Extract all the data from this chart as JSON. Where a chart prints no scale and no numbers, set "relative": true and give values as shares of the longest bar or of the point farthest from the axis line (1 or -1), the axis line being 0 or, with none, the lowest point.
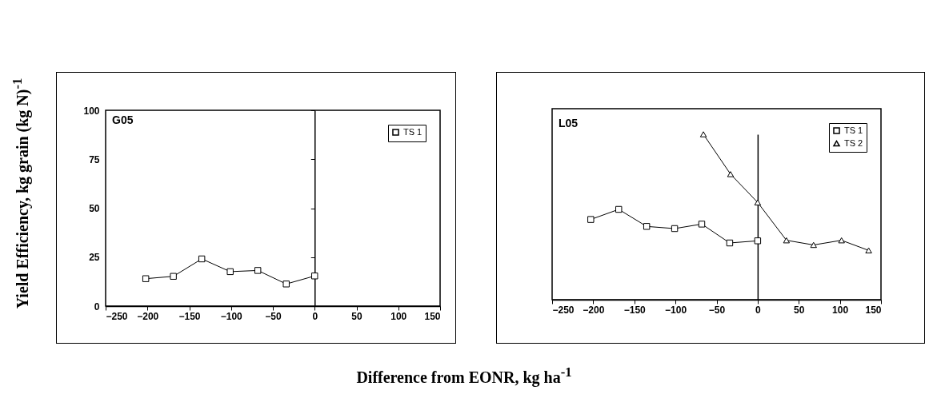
{
  "chart_data": [
    {
      "type": "line",
      "title": "G05",
      "xlabel": "Difference from EONR, kg ha$^{-1}$",
      "ylabel": "Yield Efficiency, kg grain (kg N)$^{-1}$",
      "xlim": [
        -250,
        150
      ],
      "xticks": [
        -250,
        -200,
        -150,
        -100,
        -50,
        0,
        50,
        100,
        150
      ],
      "ylim": [
        0,
        100
      ],
      "yticks": [
        0,
        25,
        50,
        75,
        100
      ],
      "legend": "top right",
      "series": [
        {
          "name": "TS 1",
          "color": "#000000",
          "marker": "square",
          "x": [
            -202,
            -169,
            -135,
            -101,
            -68,
            -34,
            0
          ],
          "values": [
            14.0,
            15.2,
            24.1,
            17.6,
            18.2,
            11.3,
            15.4
          ]
        }
      ]
    },
    {
      "type": "line",
      "title": "L05",
      "relative": true,
      "xlim": [
        -250,
        150
      ],
      "xticks": [
        -250,
        -200,
        -150,
        -100,
        -50,
        0,
        50,
        100,
        150
      ],
      "legend": "top right",
      "series": [
        {
          "name": "TS 1",
          "color": "#000000",
          "marker": "square",
          "x": [
            -203,
            -169,
            -135,
            -101,
            -68,
            -34,
            0
          ],
          "values": [
            0.485,
            0.546,
            0.443,
            0.43,
            0.457,
            0.343,
            0.356
          ]
        },
        {
          "name": "TS 2",
          "color": "#000000",
          "marker": "triangle",
          "x": [
            -66,
            -33,
            0,
            35,
            68,
            102,
            135
          ],
          "values": [
            1,
            0.759,
            0.588,
            0.359,
            0.331,
            0.359,
            0.298
          ]
        }
      ]
    }
  ]
}
